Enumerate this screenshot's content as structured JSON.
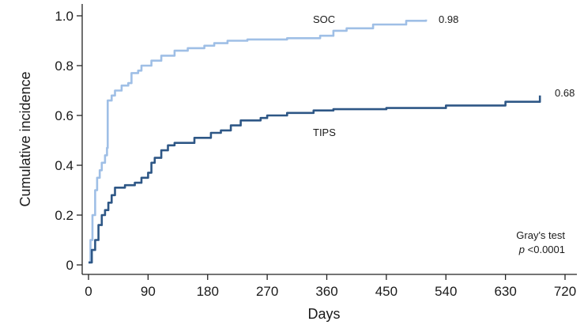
{
  "chart_data": {
    "type": "line",
    "step": true,
    "xlabel": "Days",
    "ylabel": "Cumulative incidence",
    "xlim": [
      0,
      720
    ],
    "ylim": [
      0,
      1.0
    ],
    "xticks": [
      0,
      90,
      180,
      270,
      360,
      450,
      540,
      630,
      720
    ],
    "yticks": [
      0,
      0.2,
      0.4,
      0.6,
      0.8,
      1.0
    ],
    "xtick_labels": [
      "0",
      "90",
      "180",
      "270",
      "360",
      "450",
      "540",
      "630",
      "720"
    ],
    "ytick_labels": [
      "0",
      "0.2",
      "0.4",
      "0.6",
      "0.8",
      "1.0"
    ],
    "grid": false,
    "series": [
      {
        "name": "SOC",
        "color": "#9fbfe6",
        "end_label": "0.98",
        "points": [
          [
            0,
            0.01
          ],
          [
            3,
            0.1
          ],
          [
            6,
            0.2
          ],
          [
            10,
            0.3
          ],
          [
            13,
            0.35
          ],
          [
            17,
            0.38
          ],
          [
            20,
            0.41
          ],
          [
            25,
            0.44
          ],
          [
            28,
            0.47
          ],
          [
            29,
            0.66
          ],
          [
            35,
            0.68
          ],
          [
            40,
            0.7
          ],
          [
            50,
            0.72
          ],
          [
            60,
            0.73
          ],
          [
            65,
            0.77
          ],
          [
            75,
            0.78
          ],
          [
            80,
            0.8
          ],
          [
            95,
            0.82
          ],
          [
            110,
            0.84
          ],
          [
            130,
            0.86
          ],
          [
            150,
            0.87
          ],
          [
            175,
            0.88
          ],
          [
            190,
            0.89
          ],
          [
            210,
            0.9
          ],
          [
            240,
            0.905
          ],
          [
            300,
            0.91
          ],
          [
            350,
            0.92
          ],
          [
            370,
            0.94
          ],
          [
            390,
            0.95
          ],
          [
            430,
            0.965
          ],
          [
            480,
            0.98
          ],
          [
            510,
            0.985
          ]
        ]
      },
      {
        "name": "TIPS",
        "color": "#2e5786",
        "end_label": "0.68",
        "points": [
          [
            0,
            0.01
          ],
          [
            5,
            0.06
          ],
          [
            10,
            0.1
          ],
          [
            15,
            0.16
          ],
          [
            20,
            0.2
          ],
          [
            25,
            0.22
          ],
          [
            30,
            0.25
          ],
          [
            35,
            0.28
          ],
          [
            40,
            0.31
          ],
          [
            55,
            0.32
          ],
          [
            70,
            0.33
          ],
          [
            80,
            0.35
          ],
          [
            90,
            0.37
          ],
          [
            95,
            0.41
          ],
          [
            100,
            0.43
          ],
          [
            110,
            0.46
          ],
          [
            120,
            0.48
          ],
          [
            130,
            0.49
          ],
          [
            160,
            0.51
          ],
          [
            185,
            0.53
          ],
          [
            200,
            0.54
          ],
          [
            215,
            0.56
          ],
          [
            230,
            0.58
          ],
          [
            260,
            0.59
          ],
          [
            270,
            0.6
          ],
          [
            300,
            0.61
          ],
          [
            340,
            0.62
          ],
          [
            370,
            0.625
          ],
          [
            450,
            0.63
          ],
          [
            540,
            0.64
          ],
          [
            630,
            0.655
          ],
          [
            682,
            0.68
          ]
        ]
      }
    ],
    "annotation": {
      "line1": "Gray's test",
      "line2_italic": "p",
      "line2_rest": " <0.0001"
    }
  }
}
